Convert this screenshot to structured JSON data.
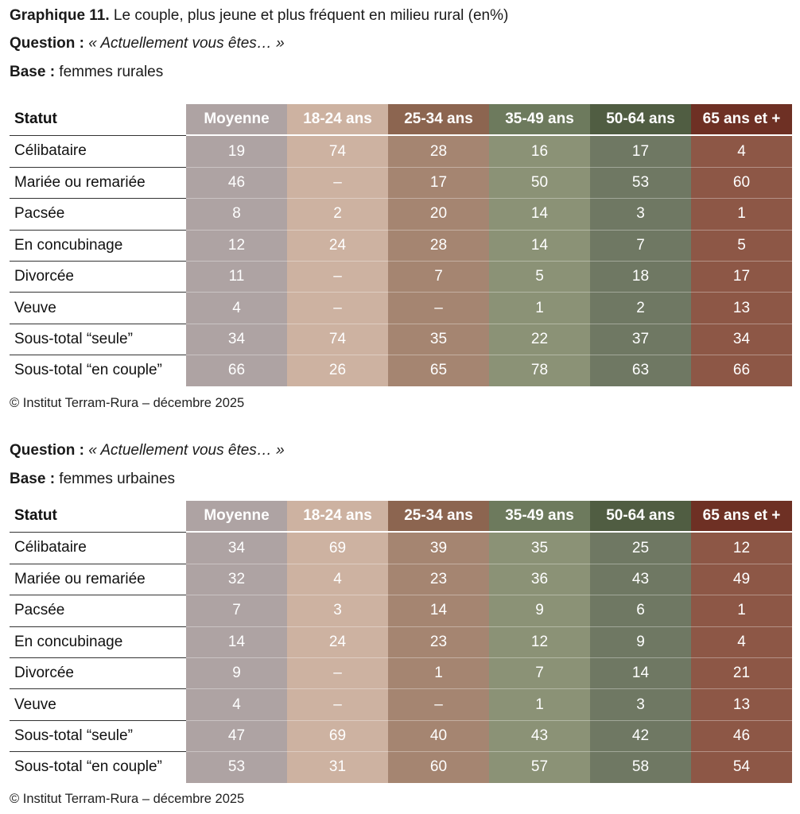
{
  "title": {
    "bold": "Graphique 11.",
    "text": " Le couple, plus jeune et plus fréquent en milieu rural (en%)"
  },
  "table1": {
    "question_label": "Question :",
    "question_text": " « Actuellement vous êtes… »",
    "base_label": "Base :",
    "base_text": " femmes rurales",
    "headers": [
      "Statut",
      "Moyenne",
      "18-24 ans",
      "25-34 ans",
      "35-49 ans",
      "50-64 ans",
      "65 ans et +"
    ],
    "rows": [
      [
        "Célibataire",
        "19",
        "74",
        "28",
        "16",
        "17",
        "4"
      ],
      [
        "Mariée ou remariée",
        "46",
        "–",
        "17",
        "50",
        "53",
        "60"
      ],
      [
        "Pacsée",
        "8",
        "2",
        "20",
        "14",
        "3",
        "1"
      ],
      [
        "En concubinage",
        "12",
        "24",
        "28",
        "14",
        "7",
        "5"
      ],
      [
        "Divorcée",
        "11",
        "–",
        "7",
        "5",
        "18",
        "17"
      ],
      [
        "Veuve",
        "4",
        "–",
        "–",
        "1",
        "2",
        "13"
      ],
      [
        "Sous-total “seule”",
        "34",
        "74",
        "35",
        "22",
        "37",
        "34"
      ],
      [
        "Sous-total “en couple”",
        "66",
        "26",
        "65",
        "78",
        "63",
        "66"
      ]
    ],
    "source": "© Institut Terram-Rura – décembre 2025"
  },
  "table2": {
    "question_label": "Question :",
    "question_text": " « Actuellement vous êtes… »",
    "base_label": "Base :",
    "base_text": " femmes urbaines",
    "headers": [
      "Statut",
      "Moyenne",
      "18-24 ans",
      "25-34 ans",
      "35-49 ans",
      "50-64 ans",
      "65 ans et +"
    ],
    "rows": [
      [
        "Célibataire",
        "34",
        "69",
        "39",
        "35",
        "25",
        "12"
      ],
      [
        "Mariée ou remariée",
        "32",
        "4",
        "23",
        "36",
        "43",
        "49"
      ],
      [
        "Pacsée",
        "7",
        "3",
        "14",
        "9",
        "6",
        "1"
      ],
      [
        "En concubinage",
        "14",
        "24",
        "23",
        "12",
        "9",
        "4"
      ],
      [
        "Divorcée",
        "9",
        "–",
        "1",
        "7",
        "14",
        "21"
      ],
      [
        "Veuve",
        "4",
        "–",
        "–",
        "1",
        "3",
        "13"
      ],
      [
        "Sous-total “seule”",
        "47",
        "69",
        "40",
        "43",
        "42",
        "46"
      ],
      [
        "Sous-total “en couple”",
        "53",
        "31",
        "60",
        "57",
        "58",
        "54"
      ]
    ],
    "source": "© Institut Terram-Rura – décembre 2025"
  }
}
